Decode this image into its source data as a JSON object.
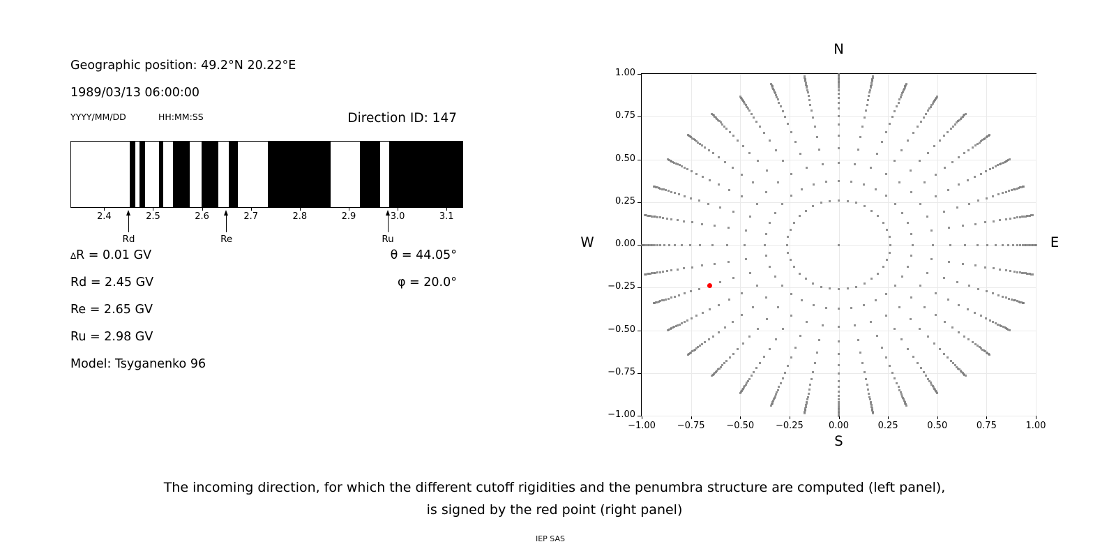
{
  "left_panel": {
    "geo_position": "Geographic position: 49.2°N 20.22°E",
    "datetime": "1989/03/13 06:00:00",
    "date_format": "YYYY/MM/DD",
    "time_format": "HH:MM:SS",
    "direction_id": "Direction ID: 147",
    "delta_symbol": "∆",
    "delta_rest": "R = 0.01 GV",
    "rd_value": "Rd = 2.45 GV",
    "re_value": "Re = 2.65 GV",
    "ru_value": "Ru = 2.98 GV",
    "model": "Model: Tsyganenko 96",
    "theta_value": "θ = 44.05°",
    "phi_value": "φ = 20.0°"
  },
  "chart_data": [
    {
      "id": "penumbra-barcode",
      "type": "bar",
      "description": "Penumbra structure: black bars mark forbidden rigidity intervals (GV), white gaps are allowed",
      "xlim": [
        2.331,
        3.134
      ],
      "xticks": [
        2.4,
        2.5,
        2.6,
        2.7,
        2.8,
        2.9,
        3.0,
        3.1
      ],
      "xtick_labels": [
        "2.4",
        "2.5",
        "2.6",
        "2.7",
        "2.8",
        "2.9",
        "3.0",
        "3.1"
      ],
      "bar_color": "#000000",
      "forbidden_intervals_gv": [
        [
          2.451,
          2.463
        ],
        [
          2.471,
          2.483
        ],
        [
          2.511,
          2.52
        ],
        [
          2.54,
          2.575
        ],
        [
          2.599,
          2.633
        ],
        [
          2.654,
          2.673
        ],
        [
          2.734,
          2.863
        ],
        [
          2.923,
          2.965
        ],
        [
          2.984,
          3.134
        ]
      ],
      "markers": [
        {
          "label": "Rd",
          "value_gv": 2.45
        },
        {
          "label": "Re",
          "value_gv": 2.65
        },
        {
          "label": "Ru",
          "value_gv": 2.98
        }
      ]
    },
    {
      "id": "direction-map",
      "type": "scatter",
      "title_top": "N",
      "label_bottom": "S",
      "label_left": "W",
      "label_right": "E",
      "xlim": [
        -1,
        1
      ],
      "ylim": [
        -1,
        1
      ],
      "xticks": [
        -1,
        -0.75,
        -0.5,
        -0.25,
        0,
        0.25,
        0.5,
        0.75,
        1
      ],
      "yticks": [
        1,
        0.75,
        0.5,
        0.25,
        0,
        -0.25,
        -0.5,
        -0.75,
        -1
      ],
      "xtick_labels": [
        "−1.00",
        "−0.75",
        "−0.50",
        "−0.25",
        "0.00",
        "0.25",
        "0.50",
        "0.75",
        "1.00"
      ],
      "ytick_labels": [
        "1.00",
        "0.75",
        "0.50",
        "0.25",
        "0.00",
        "−0.25",
        "−0.50",
        "−0.75",
        "−1.00"
      ],
      "grid": true,
      "grid_color": "#eaeaea",
      "dot_color": "#7b7b7b",
      "spokes": {
        "azimuth_step_deg": 10,
        "spoke_count": 36,
        "radii": [
          0.261,
          0.374,
          0.479,
          0.567,
          0.64,
          0.703,
          0.755,
          0.797,
          0.832,
          0.861,
          0.885,
          0.905,
          0.92,
          0.933,
          0.944,
          0.953,
          0.963,
          0.971,
          0.979,
          0.986,
          0.993,
          1.0
        ]
      },
      "center_dot": {
        "x": 0,
        "y": 0
      },
      "selected_point": {
        "x": -0.655,
        "y": -0.24,
        "color": "#ff0000",
        "theta_deg": 44.05,
        "phi_deg": 20.0
      }
    }
  ],
  "caption": {
    "line1": "The incoming direction, for which the different cutoff rigidities and the penumbra structure are computed (left panel),",
    "line2": "is signed by the red point (right panel)"
  },
  "credit": "IEP SAS"
}
